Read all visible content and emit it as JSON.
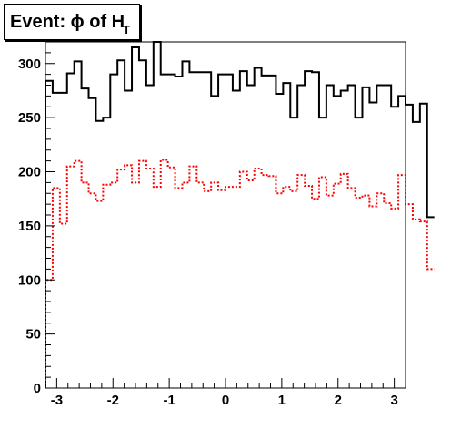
{
  "chart_data": {
    "type": "histogram",
    "title": "Event: ϕ of H",
    "title_subscript": "T",
    "x_range": [
      -3.2,
      3.2
    ],
    "y_range": [
      0,
      320
    ],
    "x_ticks": [
      "-3",
      "-2",
      "-1",
      "0",
      "1",
      "2",
      "3"
    ],
    "y_ticks": [
      "0",
      "50",
      "100",
      "150",
      "200",
      "250",
      "300"
    ],
    "bin_edges_start": -3.2,
    "bin_width": 0.128,
    "grid": false,
    "series": [
      {
        "style": "solid",
        "color": "#000000",
        "values": [
          284,
          273,
          273,
          291,
          302,
          277,
          268,
          247,
          250,
          290,
          303,
          275,
          315,
          303,
          280,
          320,
          290,
          290,
          288,
          302,
          292,
          292,
          292,
          270,
          290,
          290,
          275,
          293,
          280,
          296,
          289,
          289,
          272,
          282,
          250,
          280,
          293,
          292,
          250,
          280,
          270,
          275,
          280,
          250,
          278,
          264,
          280,
          280,
          260,
          270,
          262,
          246,
          263,
          158
        ]
      },
      {
        "style": "dotted",
        "color": "#ff0000",
        "values": [
          100,
          185,
          152,
          205,
          210,
          190,
          180,
          173,
          188,
          190,
          202,
          206,
          190,
          210,
          203,
          186,
          211,
          204,
          185,
          190,
          205,
          190,
          182,
          190,
          183,
          186,
          186,
          200,
          192,
          203,
          197,
          196,
          180,
          186,
          182,
          197,
          187,
          175,
          195,
          178,
          189,
          198,
          185,
          176,
          178,
          168,
          180,
          171,
          166,
          197,
          170,
          156,
          154,
          110
        ]
      }
    ]
  }
}
